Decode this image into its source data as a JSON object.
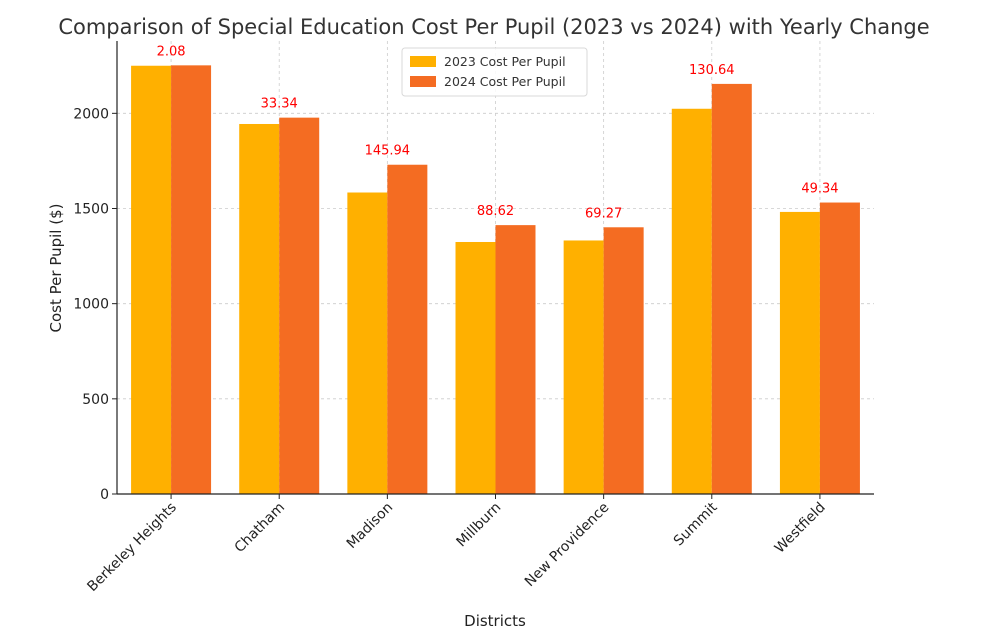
{
  "chart_data": {
    "type": "bar",
    "title": "Comparison of Special Education Cost Per Pupil (2023 vs 2024) with Yearly Change",
    "xlabel": "Districts",
    "ylabel": "Cost Per Pupil ($)",
    "ylim": [
      0,
      2380
    ],
    "yticks": [
      0,
      500,
      1000,
      1500,
      2000
    ],
    "grid": true,
    "legend_position": "top-center",
    "categories": [
      "Berkeley Heights",
      "Chatham",
      "Madison",
      "Millburn",
      "New Providence",
      "Summit",
      "Westfield"
    ],
    "series": [
      {
        "name": "2023 Cost Per Pupil",
        "color": "#FFB000",
        "values": [
          2250,
          1944,
          1584,
          1324,
          1332,
          2024,
          1482
        ]
      },
      {
        "name": "2024 Cost Per Pupil",
        "color": "#F46C22",
        "values": [
          2252.08,
          1977.34,
          1729.94,
          1412.62,
          1401.27,
          2154.64,
          1531.34
        ]
      }
    ],
    "annotations": [
      "2.08",
      "33.34",
      "145.94",
      "88.62",
      "69.27",
      "130.64",
      "49.34"
    ],
    "annotation_color": "#FF0000"
  }
}
